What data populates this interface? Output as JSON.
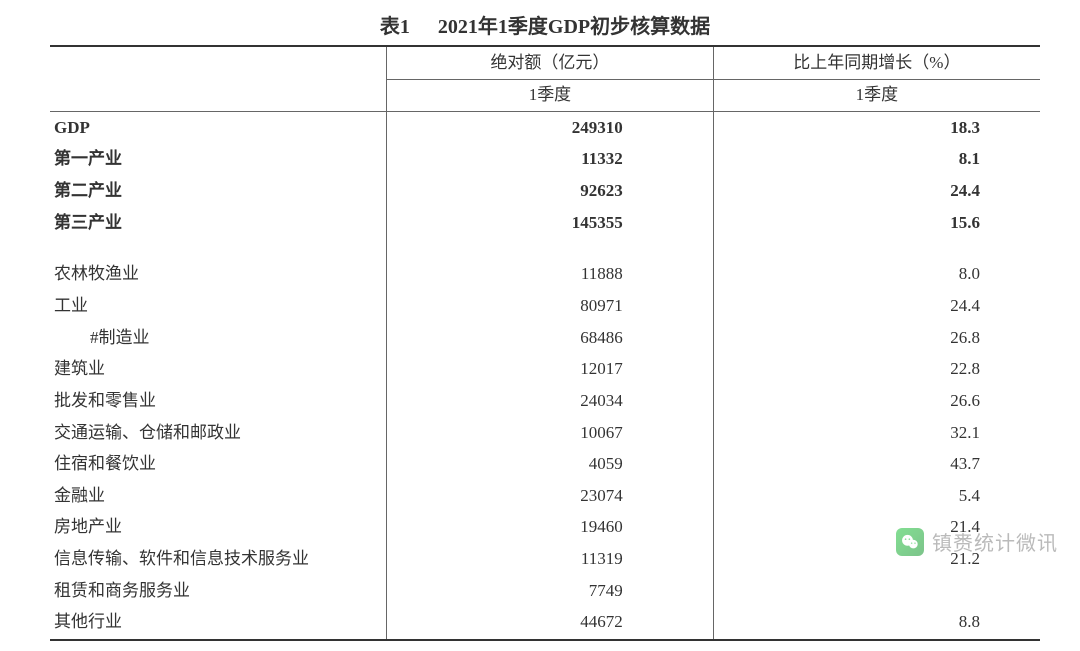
{
  "title_prefix": "表1",
  "title_main": "2021年1季度GDP初步核算数据",
  "columns": {
    "col_amount_label": "绝对额（亿元）",
    "col_growth_label": "比上年同期增长（%）",
    "sub_period": "1季度"
  },
  "top_rows": [
    {
      "label": "GDP",
      "amount": "249310",
      "growth": "18.3",
      "bold": true
    },
    {
      "label": "第一产业",
      "amount": "11332",
      "growth": "8.1",
      "bold": true
    },
    {
      "label": "第二产业",
      "amount": "92623",
      "growth": "24.4",
      "bold": true
    },
    {
      "label": "第三产业",
      "amount": "145355",
      "growth": "15.6",
      "bold": true
    }
  ],
  "detail_rows": [
    {
      "label": "农林牧渔业",
      "amount": "11888",
      "growth": "8.0",
      "indent": 1
    },
    {
      "label": "工业",
      "amount": "80971",
      "growth": "24.4",
      "indent": 1
    },
    {
      "label": "#制造业",
      "amount": "68486",
      "growth": "26.8",
      "indent": 2
    },
    {
      "label": "建筑业",
      "amount": "12017",
      "growth": "22.8",
      "indent": 1
    },
    {
      "label": "批发和零售业",
      "amount": "24034",
      "growth": "26.6",
      "indent": 1
    },
    {
      "label": "交通运输、仓储和邮政业",
      "amount": "10067",
      "growth": "32.1",
      "indent": 1
    },
    {
      "label": "住宿和餐饮业",
      "amount": "4059",
      "growth": "43.7",
      "indent": 1
    },
    {
      "label": "金融业",
      "amount": "23074",
      "growth": "5.4",
      "indent": 1
    },
    {
      "label": "房地产业",
      "amount": "19460",
      "growth": "21.4",
      "indent": 1
    },
    {
      "label": "信息传输、软件和信息技术服务业",
      "amount": "11319",
      "growth": "21.2",
      "indent": 1
    },
    {
      "label": "租赁和商务服务业",
      "amount": "7749",
      "growth": "",
      "indent": 1
    },
    {
      "label": "其他行业",
      "amount": "44672",
      "growth": "8.8",
      "indent": 1
    }
  ],
  "watermark": {
    "text": "镇赉统计微讯"
  },
  "style": {
    "text_color": "#333333",
    "border_color_heavy": "#333333",
    "border_color_light": "#666666",
    "background": "#ffffff",
    "font_size_body": 17,
    "font_size_title": 20,
    "watermark_color": "#8a8a8a",
    "wechat_green_from": "#2ac845",
    "wechat_green_to": "#1f9937"
  }
}
